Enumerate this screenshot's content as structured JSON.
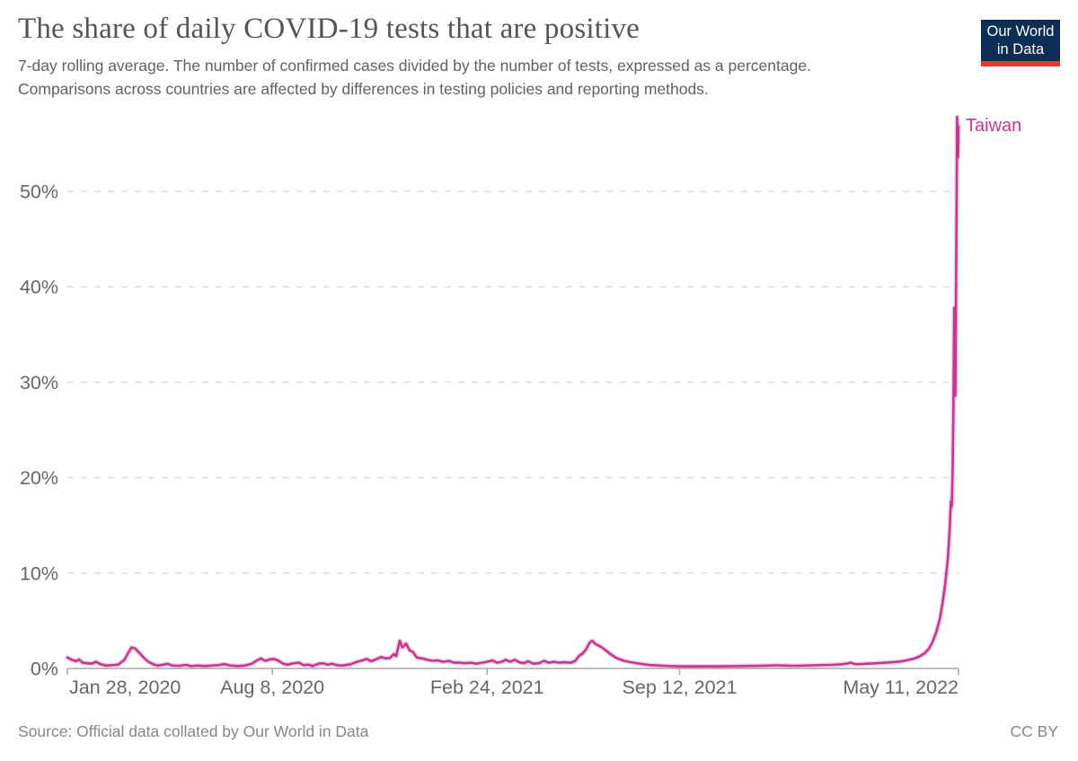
{
  "header": {
    "title": "The share of daily COVID-19 tests that are positive",
    "subtitle": "7-day rolling average. The number of confirmed cases divided by the number of tests, expressed as a percentage.\nComparisons across countries are affected by differences in testing policies and reporting methods.",
    "logo": {
      "line1": "Our World",
      "line2": "in Data",
      "bg_color": "#0c2d54",
      "stripe_color": "#dd3e31"
    }
  },
  "footer": {
    "source": "Source: Official data collated by Our World in Data",
    "license": "CC BY"
  },
  "chart_data": {
    "type": "line",
    "title": "The share of daily COVID-19 tests that are positive",
    "ylabel": "",
    "xlabel": "",
    "grid": true,
    "ylim": [
      0,
      59
    ],
    "y_ticks": [
      {
        "value": 0,
        "label": "0%"
      },
      {
        "value": 10,
        "label": "10%"
      },
      {
        "value": 20,
        "label": "20%"
      },
      {
        "value": 30,
        "label": "30%"
      },
      {
        "value": 40,
        "label": "40%"
      },
      {
        "value": 50,
        "label": "50%"
      }
    ],
    "x_ticks": [
      {
        "t": 0.0,
        "label": "Jan 28, 2020",
        "align": "start"
      },
      {
        "t": 0.23,
        "label": "Aug 8, 2020",
        "align": "middle"
      },
      {
        "t": 0.471,
        "label": "Feb 24, 2021",
        "align": "middle"
      },
      {
        "t": 0.687,
        "label": "Sep 12, 2021",
        "align": "middle"
      },
      {
        "t": 1.0,
        "label": "May 11, 2022",
        "align": "end"
      }
    ],
    "axis_color": "#ababab",
    "grid_color": "#dcdcdc",
    "tick_label_color": "#666666",
    "series": [
      {
        "name": "Taiwan",
        "color": "#c9368f",
        "unit": "%",
        "points": [
          [
            0,
            1.15
          ],
          [
            0.005,
            0.9
          ],
          [
            0.01,
            0.75
          ],
          [
            0.013,
            0.95
          ],
          [
            0.017,
            0.6
          ],
          [
            0.022,
            0.55
          ],
          [
            0.027,
            0.5
          ],
          [
            0.032,
            0.7
          ],
          [
            0.037,
            0.45
          ],
          [
            0.043,
            0.3
          ],
          [
            0.05,
            0.35
          ],
          [
            0.057,
            0.4
          ],
          [
            0.064,
            0.9
          ],
          [
            0.068,
            1.6
          ],
          [
            0.072,
            2.2
          ],
          [
            0.076,
            2.1
          ],
          [
            0.081,
            1.6
          ],
          [
            0.086,
            1.1
          ],
          [
            0.091,
            0.7
          ],
          [
            0.096,
            0.45
          ],
          [
            0.101,
            0.3
          ],
          [
            0.108,
            0.4
          ],
          [
            0.112,
            0.5
          ],
          [
            0.118,
            0.3
          ],
          [
            0.126,
            0.28
          ],
          [
            0.133,
            0.38
          ],
          [
            0.139,
            0.25
          ],
          [
            0.146,
            0.3
          ],
          [
            0.154,
            0.25
          ],
          [
            0.161,
            0.3
          ],
          [
            0.169,
            0.35
          ],
          [
            0.176,
            0.45
          ],
          [
            0.183,
            0.3
          ],
          [
            0.192,
            0.25
          ],
          [
            0.199,
            0.3
          ],
          [
            0.207,
            0.5
          ],
          [
            0.212,
            0.8
          ],
          [
            0.217,
            1.05
          ],
          [
            0.222,
            0.8
          ],
          [
            0.227,
            0.95
          ],
          [
            0.232,
            1.0
          ],
          [
            0.237,
            0.8
          ],
          [
            0.242,
            0.5
          ],
          [
            0.247,
            0.4
          ],
          [
            0.254,
            0.55
          ],
          [
            0.26,
            0.6
          ],
          [
            0.265,
            0.35
          ],
          [
            0.27,
            0.4
          ],
          [
            0.275,
            0.25
          ],
          [
            0.282,
            0.5
          ],
          [
            0.287,
            0.55
          ],
          [
            0.292,
            0.4
          ],
          [
            0.297,
            0.5
          ],
          [
            0.302,
            0.35
          ],
          [
            0.309,
            0.3
          ],
          [
            0.318,
            0.45
          ],
          [
            0.325,
            0.7
          ],
          [
            0.331,
            0.85
          ],
          [
            0.336,
            1.0
          ],
          [
            0.341,
            0.75
          ],
          [
            0.346,
            0.95
          ],
          [
            0.352,
            1.2
          ],
          [
            0.357,
            1.05
          ],
          [
            0.362,
            1.1
          ],
          [
            0.366,
            1.5
          ],
          [
            0.369,
            1.3
          ],
          [
            0.373,
            2.9
          ],
          [
            0.376,
            2.2
          ],
          [
            0.38,
            2.6
          ],
          [
            0.384,
            1.9
          ],
          [
            0.388,
            1.7
          ],
          [
            0.392,
            1.15
          ],
          [
            0.398,
            1.05
          ],
          [
            0.404,
            0.9
          ],
          [
            0.41,
            0.8
          ],
          [
            0.416,
            0.85
          ],
          [
            0.422,
            0.7
          ],
          [
            0.428,
            0.8
          ],
          [
            0.434,
            0.6
          ],
          [
            0.44,
            0.6
          ],
          [
            0.447,
            0.55
          ],
          [
            0.453,
            0.6
          ],
          [
            0.459,
            0.5
          ],
          [
            0.465,
            0.6
          ],
          [
            0.471,
            0.7
          ],
          [
            0.477,
            0.85
          ],
          [
            0.482,
            0.6
          ],
          [
            0.487,
            0.7
          ],
          [
            0.492,
            0.9
          ],
          [
            0.497,
            0.7
          ],
          [
            0.502,
            0.9
          ],
          [
            0.507,
            0.65
          ],
          [
            0.512,
            0.55
          ],
          [
            0.517,
            0.75
          ],
          [
            0.523,
            0.5
          ],
          [
            0.529,
            0.55
          ],
          [
            0.535,
            0.8
          ],
          [
            0.54,
            0.6
          ],
          [
            0.546,
            0.7
          ],
          [
            0.552,
            0.6
          ],
          [
            0.558,
            0.65
          ],
          [
            0.565,
            0.6
          ],
          [
            0.57,
            0.8
          ],
          [
            0.574,
            1.3
          ],
          [
            0.578,
            1.55
          ],
          [
            0.582,
            2.0
          ],
          [
            0.586,
            2.7
          ],
          [
            0.589,
            2.9
          ],
          [
            0.592,
            2.6
          ],
          [
            0.596,
            2.4
          ],
          [
            0.6,
            2.2
          ],
          [
            0.604,
            1.9
          ],
          [
            0.608,
            1.6
          ],
          [
            0.612,
            1.35
          ],
          [
            0.616,
            1.1
          ],
          [
            0.62,
            0.95
          ],
          [
            0.625,
            0.8
          ],
          [
            0.63,
            0.7
          ],
          [
            0.636,
            0.6
          ],
          [
            0.642,
            0.5
          ],
          [
            0.648,
            0.42
          ],
          [
            0.654,
            0.36
          ],
          [
            0.66,
            0.32
          ],
          [
            0.668,
            0.28
          ],
          [
            0.676,
            0.25
          ],
          [
            0.685,
            0.23
          ],
          [
            0.696,
            0.22
          ],
          [
            0.706,
            0.22
          ],
          [
            0.716,
            0.23
          ],
          [
            0.726,
            0.22
          ],
          [
            0.736,
            0.23
          ],
          [
            0.746,
            0.24
          ],
          [
            0.756,
            0.25
          ],
          [
            0.766,
            0.26
          ],
          [
            0.776,
            0.27
          ],
          [
            0.786,
            0.3
          ],
          [
            0.796,
            0.33
          ],
          [
            0.806,
            0.3
          ],
          [
            0.817,
            0.28
          ],
          [
            0.827,
            0.3
          ],
          [
            0.837,
            0.33
          ],
          [
            0.847,
            0.36
          ],
          [
            0.857,
            0.38
          ],
          [
            0.867,
            0.42
          ],
          [
            0.874,
            0.5
          ],
          [
            0.879,
            0.6
          ],
          [
            0.884,
            0.45
          ],
          [
            0.89,
            0.45
          ],
          [
            0.896,
            0.5
          ],
          [
            0.902,
            0.52
          ],
          [
            0.908,
            0.55
          ],
          [
            0.914,
            0.58
          ],
          [
            0.92,
            0.62
          ],
          [
            0.926,
            0.66
          ],
          [
            0.932,
            0.7
          ],
          [
            0.938,
            0.78
          ],
          [
            0.944,
            0.9
          ],
          [
            0.951,
            1.05
          ],
          [
            0.957,
            1.3
          ],
          [
            0.962,
            1.6
          ],
          [
            0.967,
            2.1
          ],
          [
            0.971,
            2.8
          ],
          [
            0.975,
            3.8
          ],
          [
            0.979,
            5.2
          ],
          [
            0.982,
            6.8
          ],
          [
            0.985,
            8.8
          ],
          [
            0.988,
            11.5
          ],
          [
            0.99,
            14.5
          ],
          [
            0.9914,
            17.5
          ],
          [
            0.9924,
            17.0
          ],
          [
            0.9934,
            21
          ],
          [
            0.9944,
            28
          ],
          [
            0.9952,
            37.8
          ],
          [
            0.996,
            32
          ],
          [
            0.9965,
            28.6
          ],
          [
            0.9971,
            38
          ],
          [
            0.9978,
            48
          ],
          [
            0.9984,
            57.8
          ],
          [
            0.999,
            54.5
          ],
          [
            0.9995,
            53.6
          ],
          [
            1,
            56.8
          ]
        ]
      }
    ]
  }
}
